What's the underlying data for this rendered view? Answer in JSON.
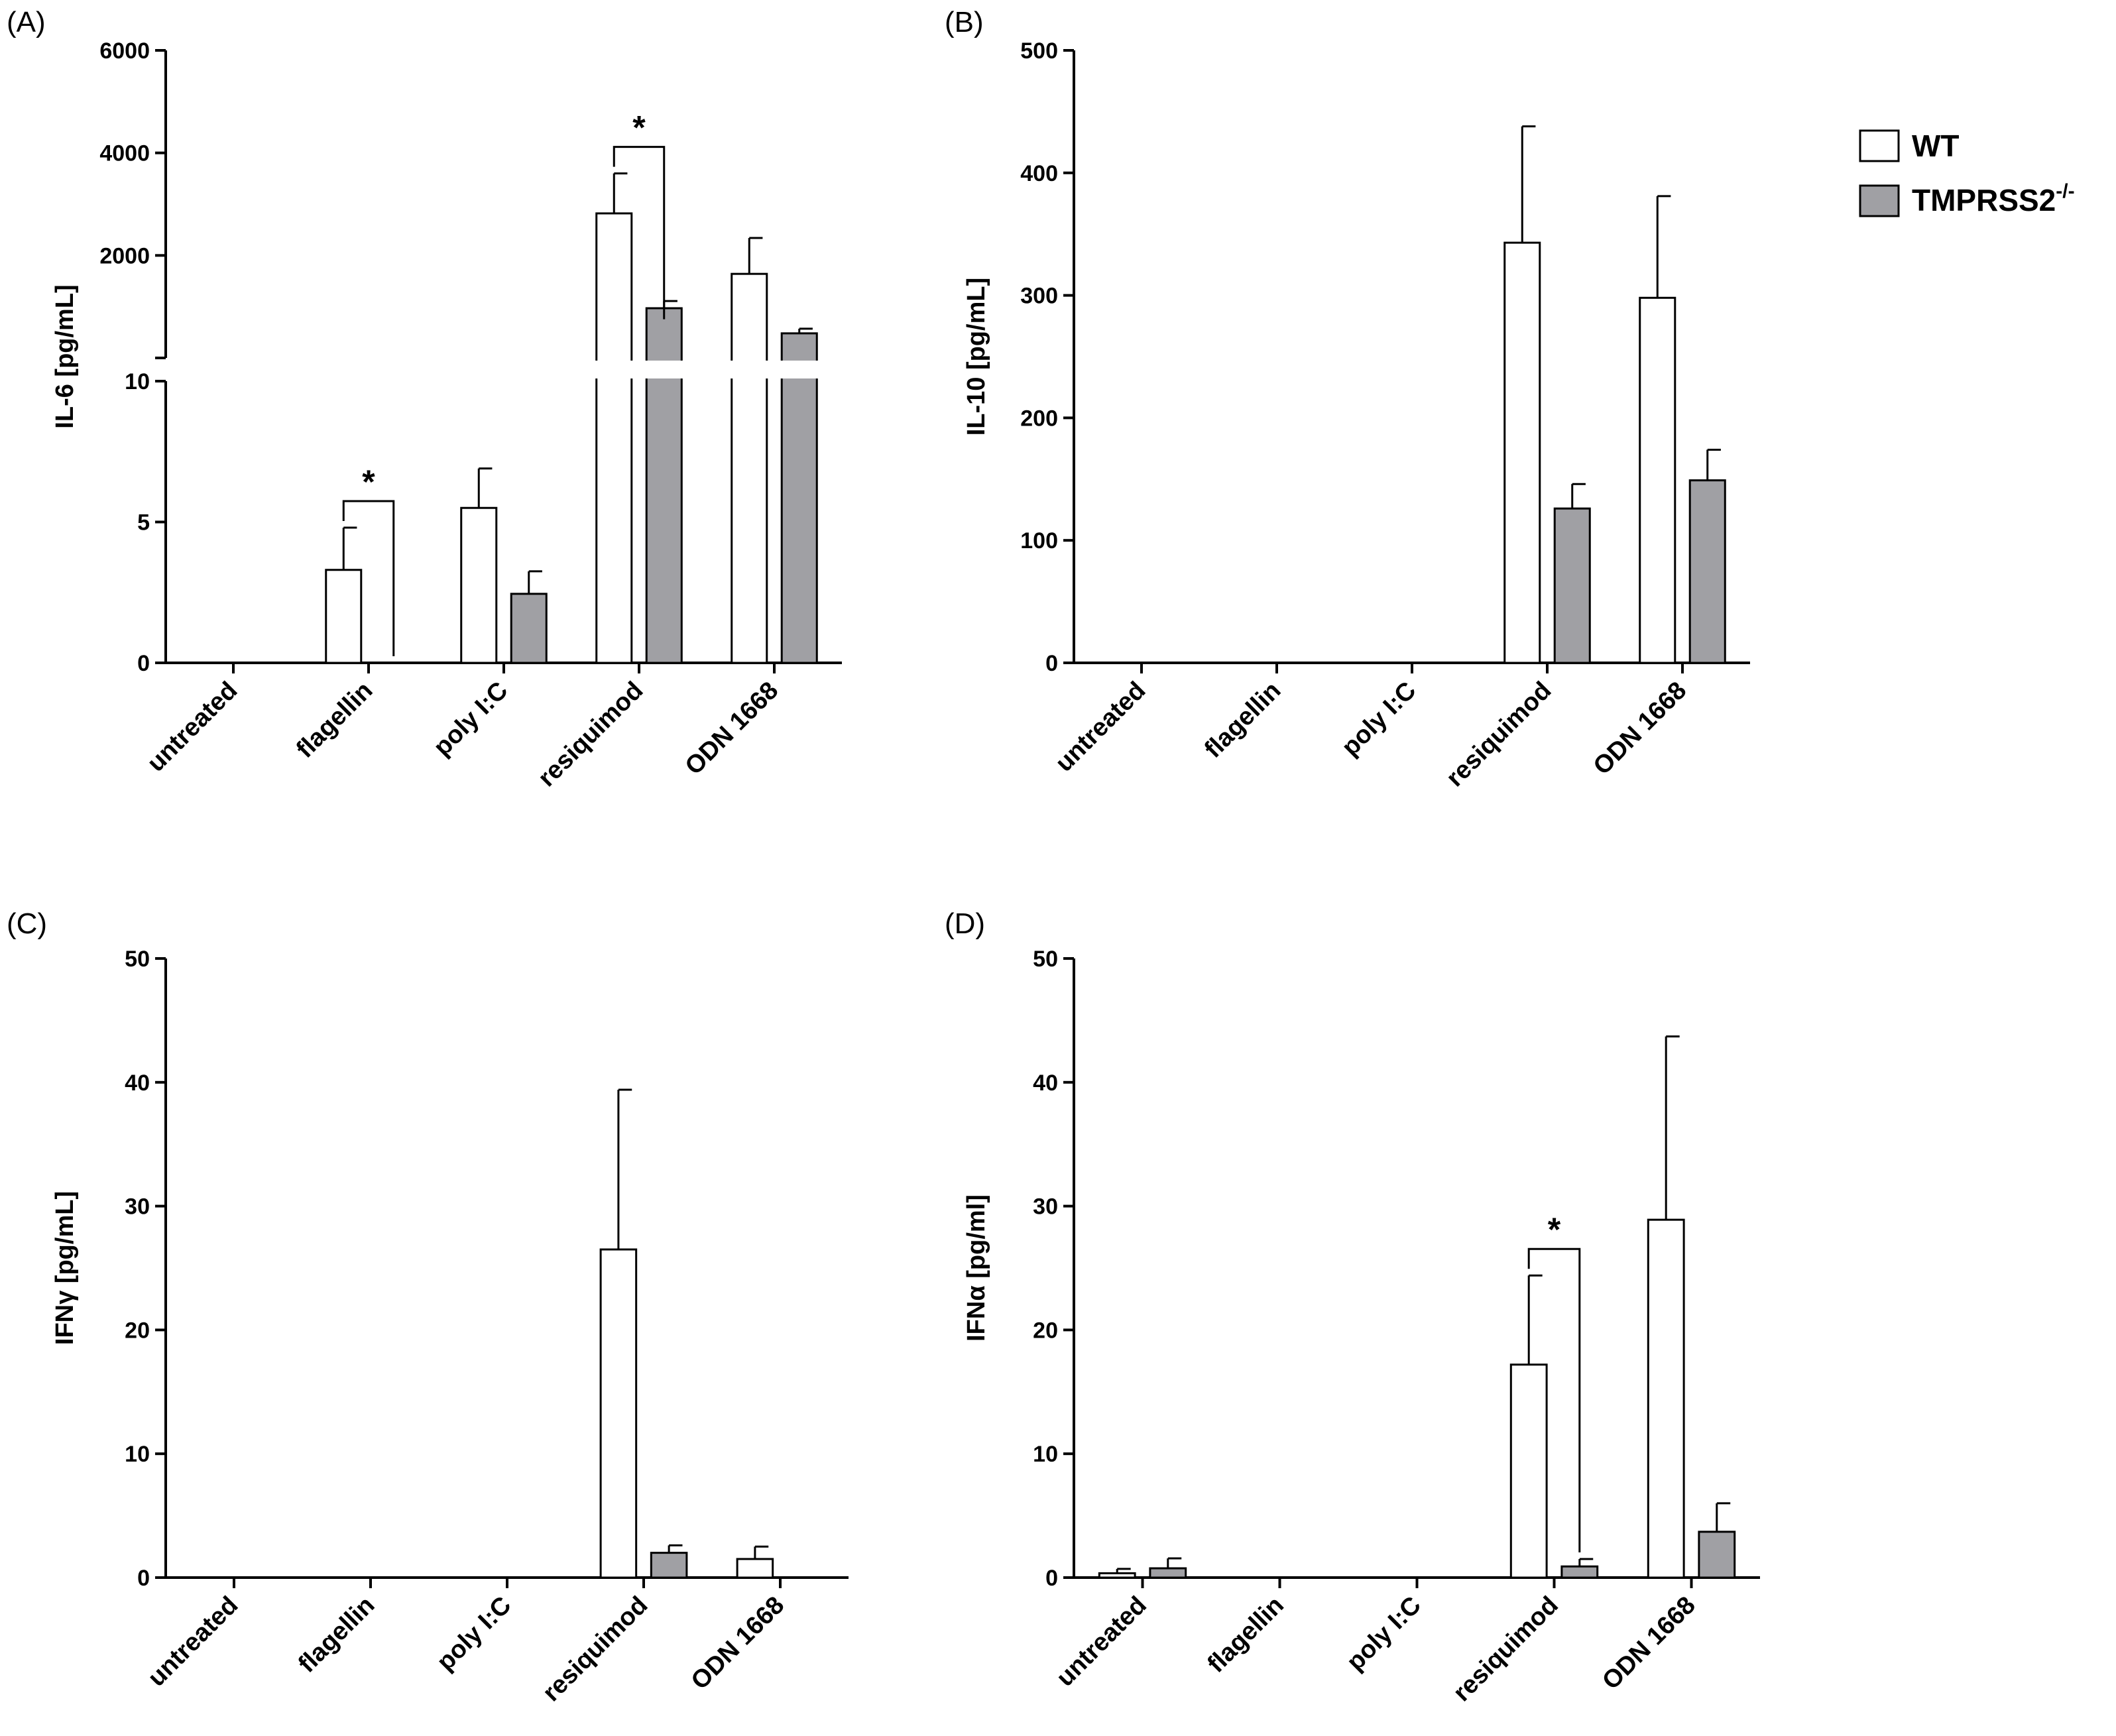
{
  "legend": {
    "items": [
      {
        "label": "WT",
        "color": "#ffffff"
      },
      {
        "label": "TMPRSS2",
        "superscript": "-/-",
        "color": "#a0a0a4"
      }
    ]
  },
  "chart_data": [
    {
      "panel": "(A)",
      "type": "bar",
      "ylabel": "IL-6 [pg/mL]",
      "axis_break": true,
      "lower_ylim": [
        0,
        10
      ],
      "lower_ticks": [
        "0",
        "5",
        "10"
      ],
      "upper_ylim": [
        0,
        6000
      ],
      "upper_ticks": [
        "2000",
        "4000",
        "6000"
      ],
      "categories": [
        "untreated",
        "flagellin",
        "poly I:C",
        "resiquimod",
        "ODN 1668"
      ],
      "series": [
        {
          "name": "WT",
          "values": [
            0,
            3.3,
            5.5,
            2820,
            1640
          ],
          "errors": [
            0,
            1.5,
            1.4,
            780,
            700
          ]
        },
        {
          "name": "TMPRSS2-/-",
          "values": [
            0,
            0,
            2.45,
            970,
            480
          ],
          "errors": [
            0,
            0,
            0.8,
            140,
            90
          ]
        }
      ],
      "significance": [
        {
          "category": "flagellin",
          "label": "*"
        },
        {
          "category": "resiquimod",
          "label": "*"
        }
      ]
    },
    {
      "panel": "(B)",
      "type": "bar",
      "ylabel": "IL-10 [pg/mL]",
      "ylim": [
        0,
        500
      ],
      "ticks": [
        "0",
        "100",
        "200",
        "300",
        "400",
        "500"
      ],
      "categories": [
        "untreated",
        "flagellin",
        "poly I:C",
        "resiquimod",
        "ODN 1668"
      ],
      "series": [
        {
          "name": "WT",
          "values": [
            0,
            0,
            0,
            343,
            298
          ],
          "errors": [
            0,
            0,
            0,
            95,
            83
          ]
        },
        {
          "name": "TMPRSS2-/-",
          "values": [
            0,
            0,
            0,
            126,
            149
          ],
          "errors": [
            0,
            0,
            0,
            20,
            25
          ]
        }
      ],
      "significance": []
    },
    {
      "panel": "(C)",
      "type": "bar",
      "ylabel": "IFNγ [pg/mL]",
      "ylim": [
        0,
        50
      ],
      "ticks": [
        "0",
        "10",
        "20",
        "30",
        "40",
        "50"
      ],
      "categories": [
        "untreated",
        "flagellin",
        "poly I:C",
        "resiquimod",
        "ODN 1668"
      ],
      "series": [
        {
          "name": "WT",
          "values": [
            0,
            0,
            0,
            26.5,
            1.5
          ],
          "errors": [
            0,
            0,
            0,
            12.9,
            1.0
          ]
        },
        {
          "name": "TMPRSS2-/-",
          "values": [
            0,
            0,
            0,
            2.0,
            0
          ],
          "errors": [
            0,
            0,
            0,
            0.6,
            0
          ]
        }
      ],
      "significance": []
    },
    {
      "panel": "(D)",
      "type": "bar",
      "ylabel": "IFNα [pg/ml]",
      "ylim": [
        0,
        50
      ],
      "ticks": [
        "0",
        "10",
        "20",
        "30",
        "40",
        "50"
      ],
      "categories": [
        "untreated",
        "flagellin",
        "poly I:C",
        "resiquimod",
        "ODN 1668"
      ],
      "series": [
        {
          "name": "WT",
          "values": [
            0.35,
            0,
            0,
            17.2,
            28.9
          ],
          "errors": [
            0.35,
            0,
            0,
            7.2,
            14.8
          ]
        },
        {
          "name": "TMPRSS2-/-",
          "values": [
            0.75,
            0,
            0,
            0.9,
            3.7
          ],
          "errors": [
            0.8,
            0,
            0,
            0.6,
            2.3
          ]
        }
      ],
      "significance": [
        {
          "category": "resiquimod",
          "label": "*"
        }
      ]
    }
  ]
}
